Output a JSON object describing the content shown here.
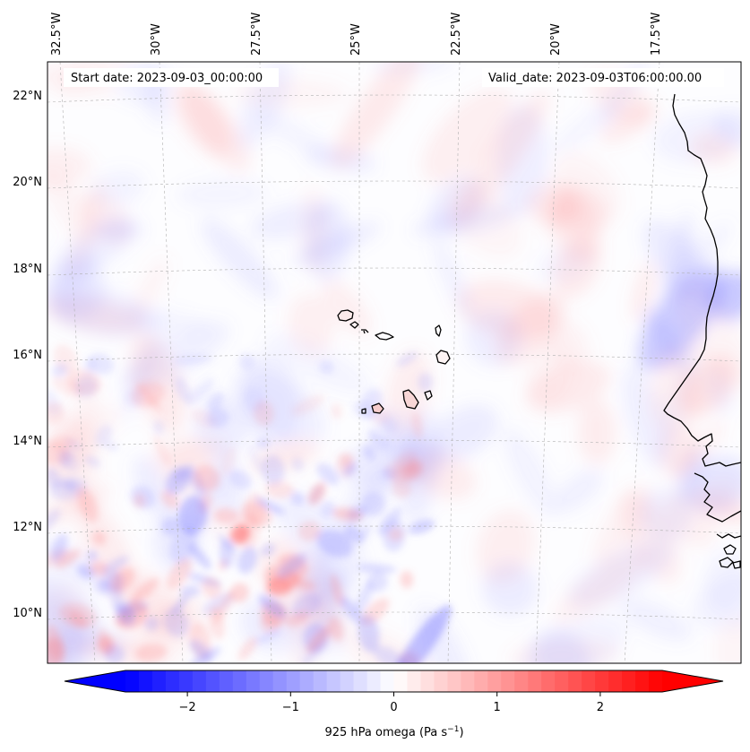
{
  "map": {
    "start_date_label": "Start date: 2023-09-03_00:00:00",
    "valid_date_label": "Valid_date: 2023-09-03T06:00:00.00",
    "lon_labels": [
      "32.5°W",
      "30°W",
      "27.5°W",
      "25°W",
      "22.5°W",
      "20°W",
      "17.5°W"
    ],
    "lat_labels": [
      "22°N",
      "20°N",
      "18°N",
      "16°N",
      "14°N",
      "12°N",
      "10°N"
    ],
    "field": "925 hPa omega",
    "colormap": "bwr",
    "gridlines": true,
    "colors": {
      "negative": "#0000ff",
      "zero": "#ffffff",
      "positive": "#ff0000",
      "coastline": "#000000",
      "gridline": "#b0b0b0"
    }
  },
  "colorbar": {
    "label_main": "925 hPa omega (Pa s",
    "label_exp": "−1",
    "label_close": ")",
    "ticks": [
      "−2",
      "−1",
      "0",
      "1",
      "2"
    ],
    "tick_values": [
      -2,
      -1,
      0,
      1,
      2
    ],
    "range": [
      -2.6,
      2.6
    ],
    "extend": "both"
  }
}
